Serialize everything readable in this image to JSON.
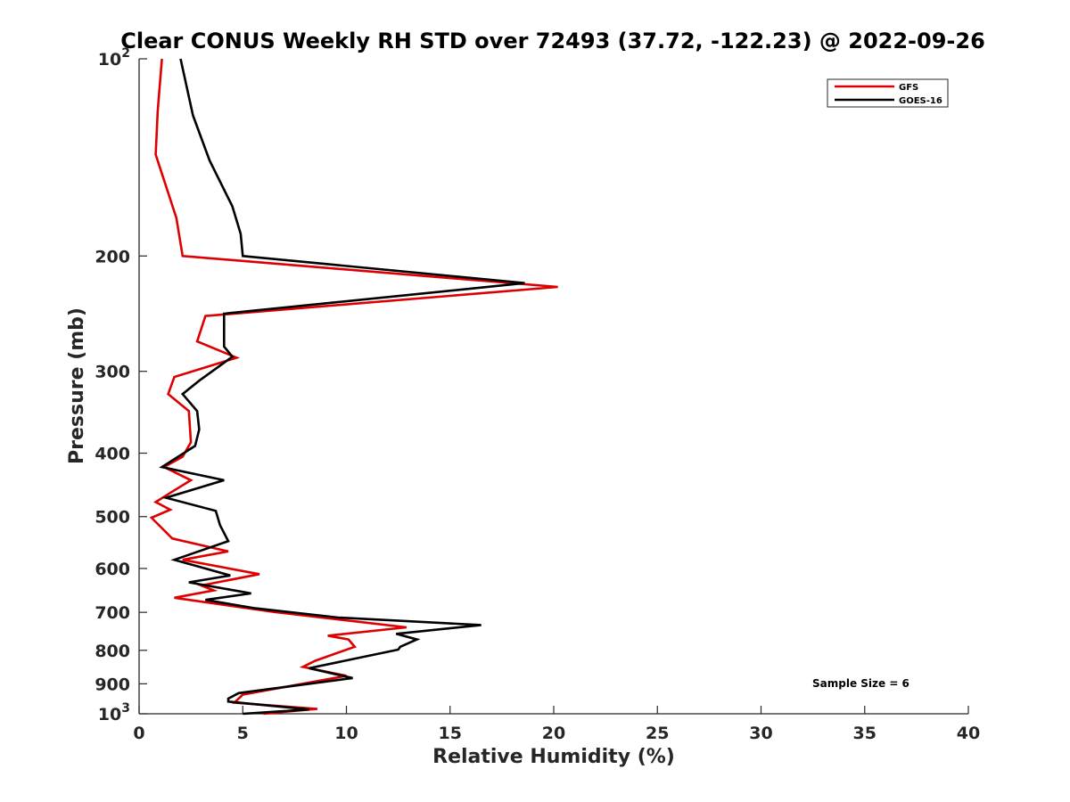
{
  "chart_data": {
    "type": "line",
    "title": "Clear CONUS Weekly RH STD over 72493 (37.72, -122.23) @ 2022-09-26",
    "xlabel": "Relative Humidity (%)",
    "ylabel": "Pressure (mb)",
    "xlim": [
      0,
      40
    ],
    "ylim": [
      100,
      1000
    ],
    "y_scale": "log",
    "y_reversed": true,
    "grid": false,
    "legend_position": "top-right",
    "x_ticks": [
      0,
      5,
      10,
      15,
      20,
      25,
      30,
      35,
      40
    ],
    "y_ticks": [
      {
        "value": 100,
        "label": "10",
        "sup": "2"
      },
      {
        "value": 200,
        "label": "200",
        "sup": ""
      },
      {
        "value": 300,
        "label": "300",
        "sup": ""
      },
      {
        "value": 400,
        "label": "400",
        "sup": ""
      },
      {
        "value": 500,
        "label": "500",
        "sup": ""
      },
      {
        "value": 600,
        "label": "600",
        "sup": ""
      },
      {
        "value": 700,
        "label": "700",
        "sup": ""
      },
      {
        "value": 800,
        "label": "800",
        "sup": ""
      },
      {
        "value": 900,
        "label": "900",
        "sup": ""
      },
      {
        "value": 1000,
        "label": "10",
        "sup": "3"
      }
    ],
    "series": [
      {
        "name": "GFS",
        "color": "#dd0000",
        "points": [
          [
            1.1,
            100
          ],
          [
            0.9,
            120
          ],
          [
            0.8,
            140
          ],
          [
            1.8,
            175
          ],
          [
            2.1,
            200
          ],
          [
            20.2,
            223
          ],
          [
            3.2,
            247
          ],
          [
            2.8,
            270
          ],
          [
            4.7,
            286
          ],
          [
            1.7,
            306
          ],
          [
            1.4,
            325
          ],
          [
            2.4,
            345
          ],
          [
            2.5,
            385
          ],
          [
            2.1,
            405
          ],
          [
            1.2,
            420
          ],
          [
            2.5,
            440
          ],
          [
            1.6,
            458
          ],
          [
            0.8,
            475
          ],
          [
            1.5,
            488
          ],
          [
            0.6,
            502
          ],
          [
            1.6,
            540
          ],
          [
            4.3,
            565
          ],
          [
            2.1,
            582
          ],
          [
            5.8,
            612
          ],
          [
            3.0,
            637
          ],
          [
            3.6,
            648
          ],
          [
            1.7,
            665
          ],
          [
            6.5,
            699
          ],
          [
            12.9,
            738
          ],
          [
            9.1,
            760
          ],
          [
            10.1,
            770
          ],
          [
            10.4,
            790
          ],
          [
            8.5,
            830
          ],
          [
            7.9,
            848
          ],
          [
            10.0,
            875
          ],
          [
            5.0,
            935
          ],
          [
            4.6,
            962
          ],
          [
            8.6,
            983
          ],
          [
            6.0,
            1000
          ]
        ]
      },
      {
        "name": "GOES-16",
        "color": "#000000",
        "points": [
          [
            2.0,
            100
          ],
          [
            2.6,
            122
          ],
          [
            3.4,
            143
          ],
          [
            4.5,
            168
          ],
          [
            4.9,
            185
          ],
          [
            5.0,
            200
          ],
          [
            18.6,
            220
          ],
          [
            4.1,
            245
          ],
          [
            4.1,
            275
          ],
          [
            4.5,
            285
          ],
          [
            2.9,
            310
          ],
          [
            2.1,
            325
          ],
          [
            2.8,
            345
          ],
          [
            2.9,
            368
          ],
          [
            2.7,
            390
          ],
          [
            1.1,
            420
          ],
          [
            4.1,
            440
          ],
          [
            1.3,
            468
          ],
          [
            3.7,
            490
          ],
          [
            3.9,
            515
          ],
          [
            4.3,
            545
          ],
          [
            1.7,
            582
          ],
          [
            4.4,
            615
          ],
          [
            2.4,
            630
          ],
          [
            5.4,
            655
          ],
          [
            3.2,
            670
          ],
          [
            5.6,
            690
          ],
          [
            9.6,
            713
          ],
          [
            16.5,
            732
          ],
          [
            12.4,
            755
          ],
          [
            13.4,
            770
          ],
          [
            12.6,
            790
          ],
          [
            12.5,
            798
          ],
          [
            8.2,
            852
          ],
          [
            10.3,
            882
          ],
          [
            4.8,
            930
          ],
          [
            4.3,
            948
          ],
          [
            4.3,
            958
          ],
          [
            8.2,
            985
          ],
          [
            5.0,
            1000
          ]
        ]
      }
    ],
    "annotations": [
      "Sample Size = 6"
    ]
  }
}
